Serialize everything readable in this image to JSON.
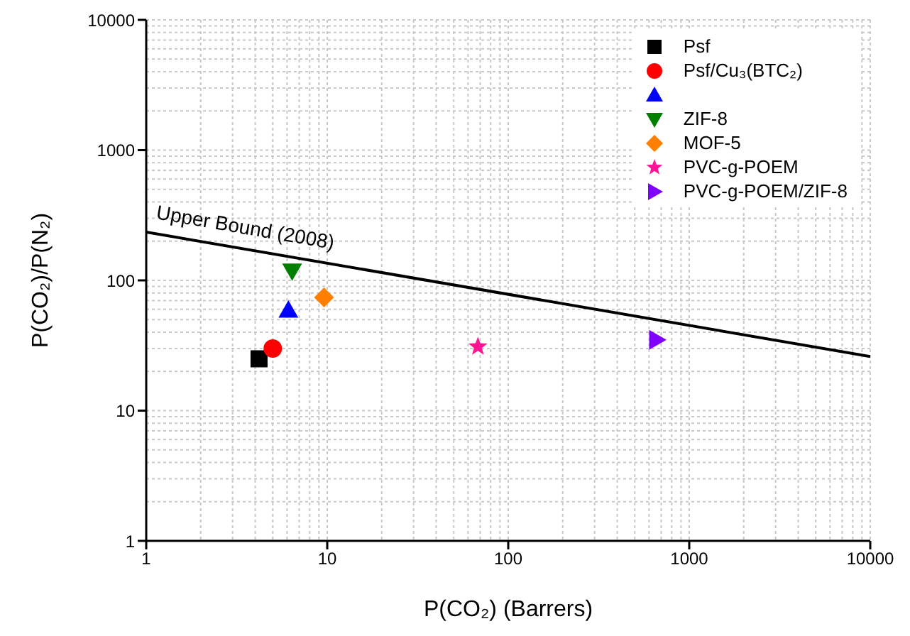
{
  "chart_data": {
    "type": "scatter",
    "xlabel": "P(CO₂) (Barrers)",
    "ylabel": "P(CO₂)/P(N₂)",
    "log": "xy",
    "grid": true,
    "legend": "top right",
    "xlim": [
      1,
      10000
    ],
    "xticks": [
      1,
      10,
      100,
      1000,
      10000
    ],
    "ylim": [
      1,
      10000
    ],
    "yticks": [
      1,
      10,
      100,
      1000,
      10000
    ],
    "series": [
      {
        "name": "Psf",
        "color": "#000000",
        "marker": "square",
        "x": [
          4.2
        ],
        "values": [
          25
        ]
      },
      {
        "name": "Psf/Cu₃(BTC₂)",
        "color": "#ff0000",
        "marker": "circle",
        "x": [
          5
        ],
        "values": [
          30
        ]
      },
      {
        "color": "#0000ff",
        "marker": "triangle",
        "x": [
          6.1
        ],
        "values": [
          59
        ]
      },
      {
        "name": "ZIF-8",
        "color": "#008000",
        "marker": "triangle-down",
        "x": [
          6.4
        ],
        "values": [
          118
        ]
      },
      {
        "name": "MOF-5",
        "color": "#ff8000",
        "marker": "diamond",
        "x": [
          9.6
        ],
        "values": [
          74
        ]
      },
      {
        "name": "PVC-g-POEM",
        "color": "#ff1493",
        "marker": "star",
        "x": [
          68
        ],
        "values": [
          31
        ]
      },
      {
        "name": "PVC-g-POEM/ZIF-8",
        "color": "#8000ff",
        "marker": "triangle-right",
        "x": [
          660
        ],
        "values": [
          35
        ]
      },
      {
        "name": "Upper Bound (2008)",
        "type": "line",
        "color": "#000000",
        "marker": "none",
        "x": [
          1,
          10000
        ],
        "values": [
          235,
          26
        ]
      }
    ]
  }
}
